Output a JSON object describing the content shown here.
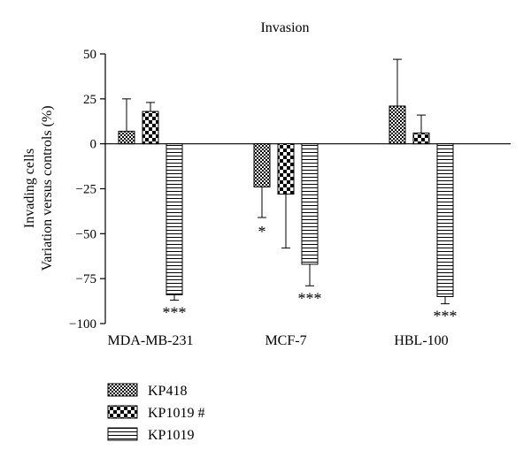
{
  "chart_data": {
    "type": "bar",
    "title": "Invasion",
    "ylabel_lines": [
      "Invading cells",
      "Variation versus controls (%)"
    ],
    "xlabel": "",
    "ylim": [
      -100,
      50
    ],
    "yticks": [
      50,
      25,
      0,
      -25,
      -50,
      -75,
      -100
    ],
    "ytick_labels": [
      "50",
      "25",
      "0",
      "−25",
      "−50",
      "−75",
      "−100"
    ],
    "categories": [
      "MDA-MB-231",
      "MCF-7",
      "HBL-100"
    ],
    "series": [
      {
        "name": "KP418",
        "pattern": "checker-fine",
        "values": [
          7,
          -24,
          21
        ],
        "error": [
          18,
          17,
          26
        ],
        "significance": [
          "",
          "*",
          ""
        ]
      },
      {
        "name": "KP1019 #",
        "pattern": "checker-coarse",
        "values": [
          18,
          -28,
          6
        ],
        "error": [
          5,
          30,
          10
        ],
        "significance": [
          "",
          "",
          ""
        ]
      },
      {
        "name": "KP1019",
        "pattern": "hstripe",
        "values": [
          -84,
          -67,
          -85
        ],
        "error": [
          3,
          12,
          4
        ],
        "significance": [
          "***",
          "***",
          "***"
        ]
      }
    ],
    "grid": false,
    "legend_position": "bottom-left"
  }
}
